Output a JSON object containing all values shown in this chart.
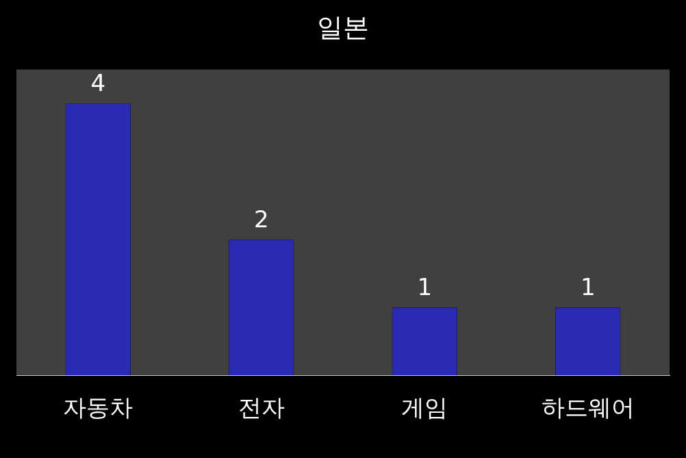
{
  "chart_data": {
    "type": "bar",
    "title": "일본",
    "categories": [
      "자동차",
      "전자",
      "게임",
      "하드웨어"
    ],
    "values": [
      4,
      2,
      1,
      1
    ],
    "color": "#2a2ab4",
    "ylim": [
      0,
      4.5
    ],
    "data_labels": true,
    "tick_labels": "x",
    "grid": false,
    "legend": false
  }
}
